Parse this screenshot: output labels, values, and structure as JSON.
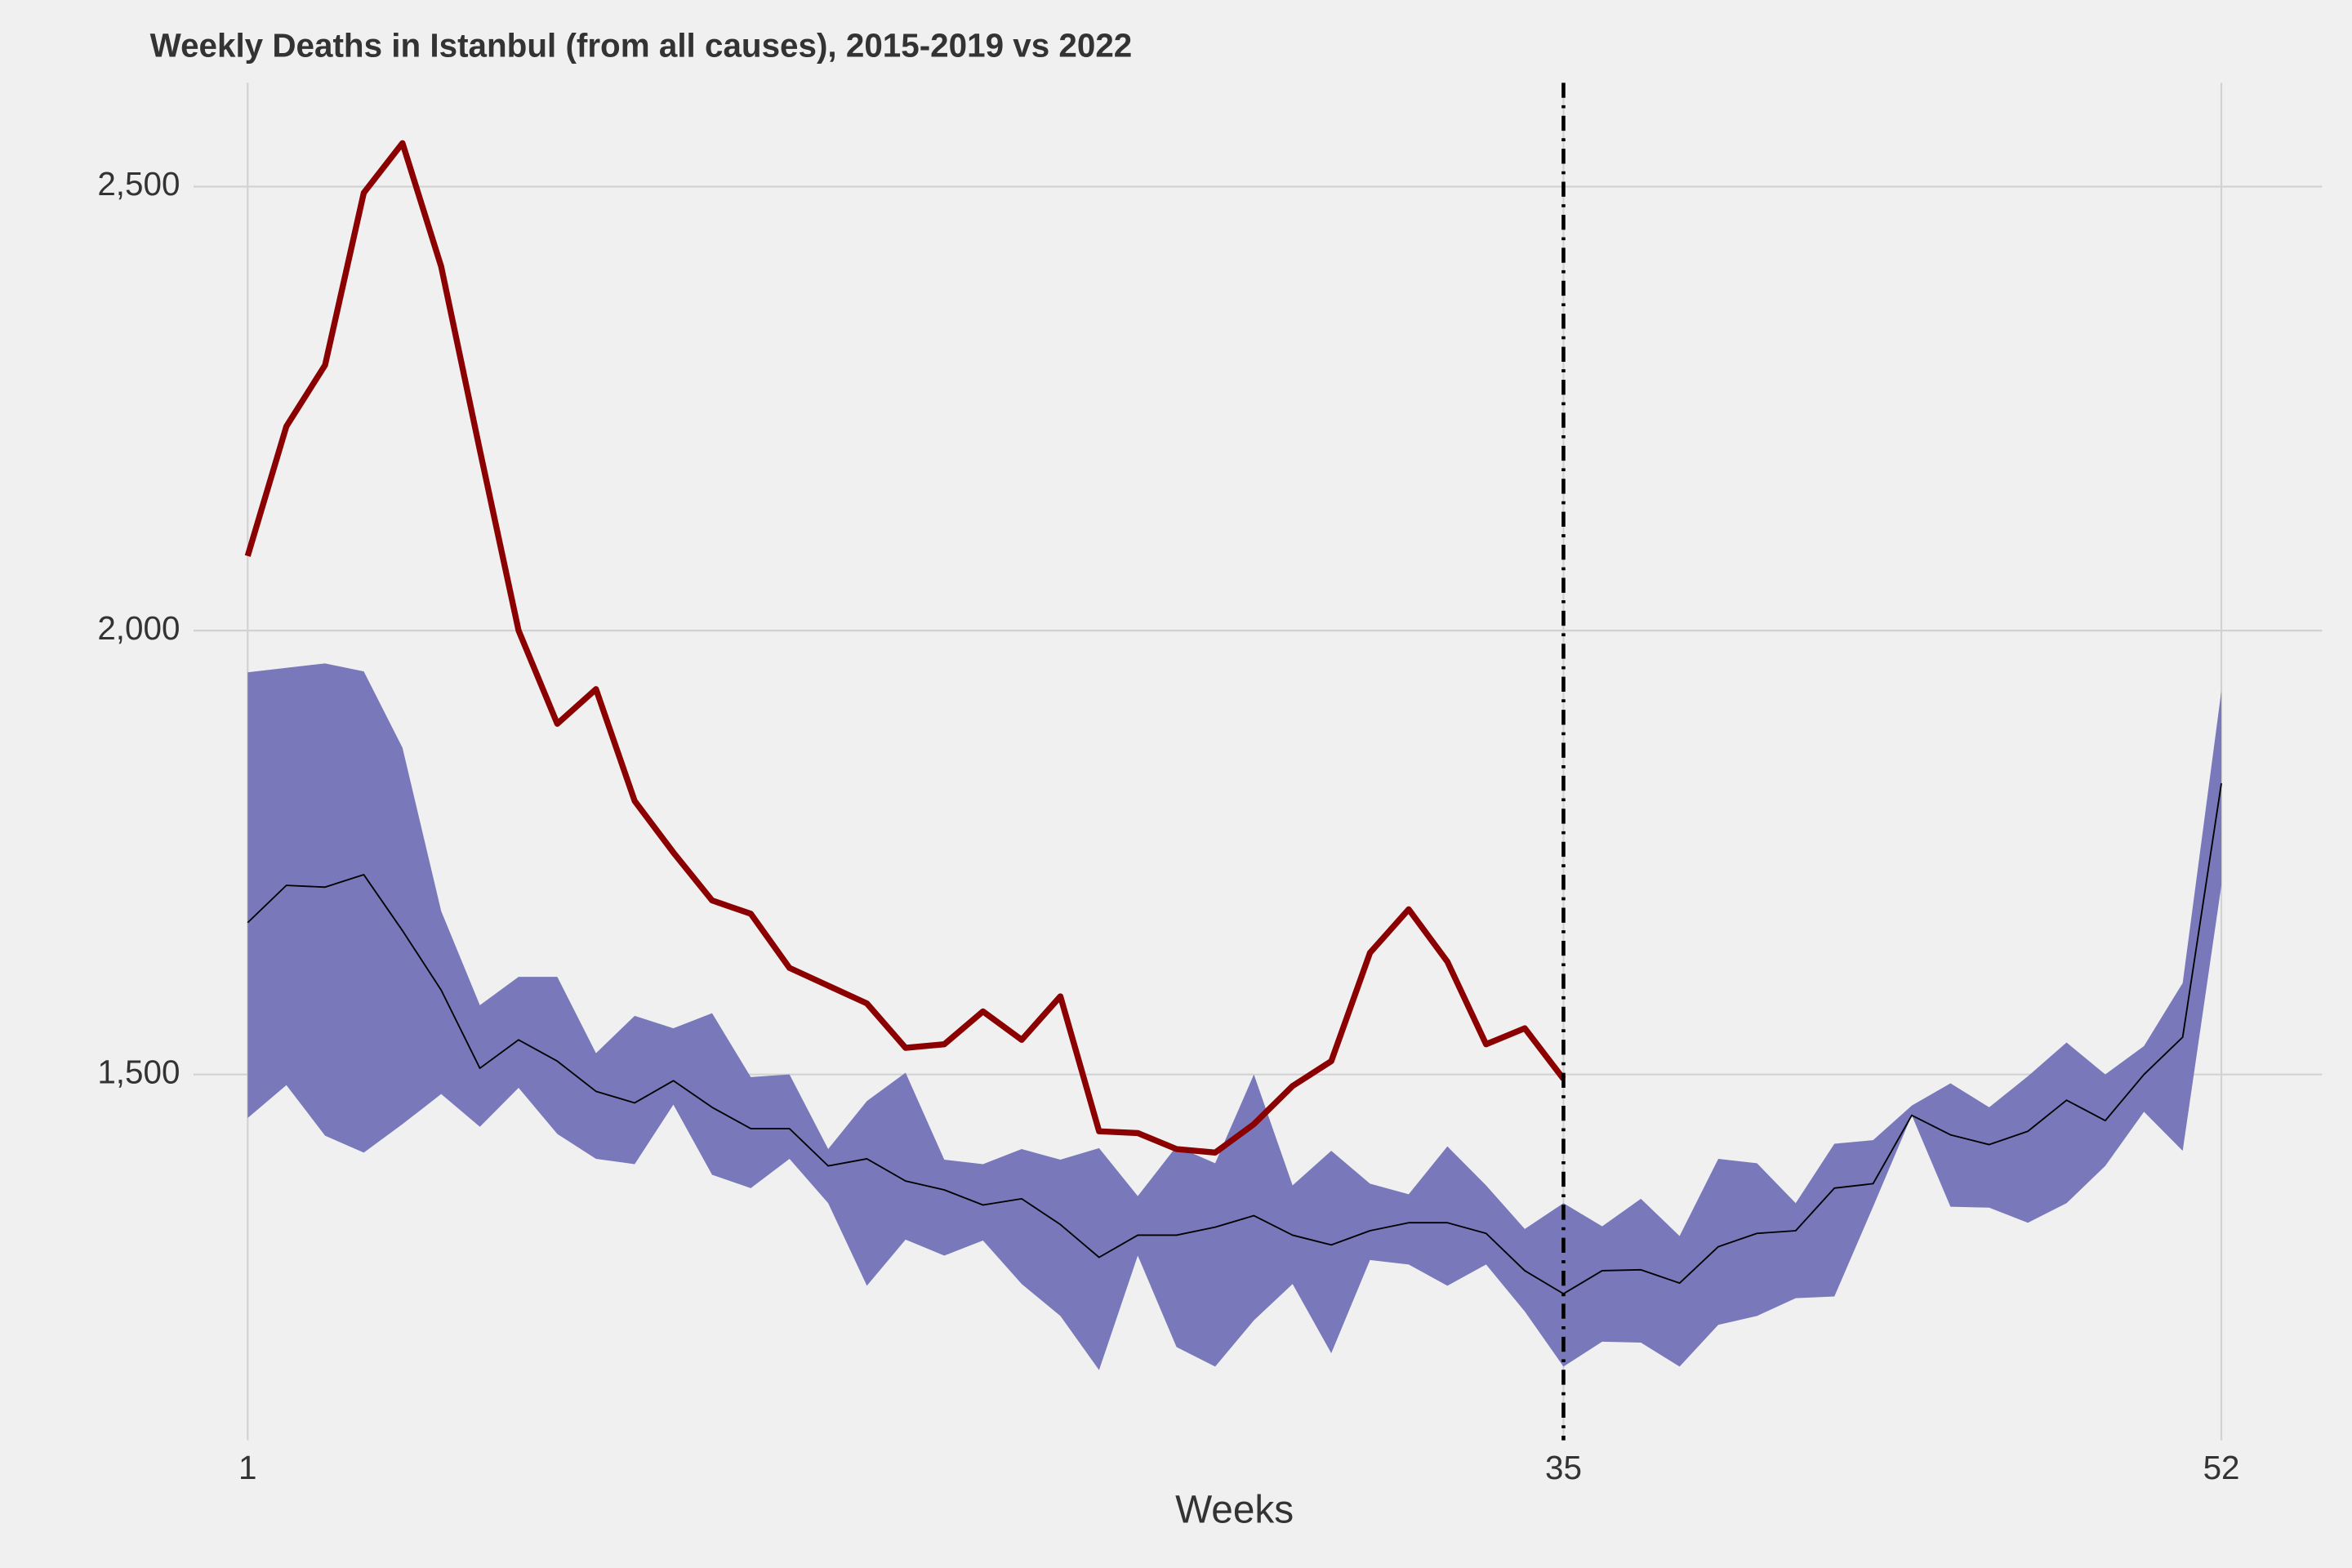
{
  "chart_data": {
    "type": "line",
    "title": "Weekly Deaths in Istanbul (from all causes), 2015-2019 vs 2022",
    "x_label": "Weeks",
    "x": [
      1,
      2,
      3,
      4,
      5,
      6,
      7,
      8,
      9,
      10,
      11,
      12,
      13,
      14,
      15,
      16,
      17,
      18,
      19,
      20,
      21,
      22,
      23,
      24,
      25,
      26,
      27,
      28,
      29,
      30,
      31,
      32,
      33,
      34,
      35,
      36,
      37,
      38,
      39,
      40,
      41,
      42,
      43,
      44,
      45,
      46,
      47,
      48,
      49,
      50,
      51,
      52
    ],
    "xlim": [
      -0.4,
      54.6
    ],
    "xticks": [
      1,
      35,
      52
    ],
    "ylim": [
      1088,
      2617
    ],
    "yticks": [
      {
        "value": 1500,
        "label": "1,500"
      },
      {
        "value": 2000,
        "label": "2,000"
      },
      {
        "value": 2500,
        "label": "2,500"
      }
    ],
    "grid": true,
    "band": {
      "color": "#7878bb",
      "upper": [
        1953,
        1958,
        1963,
        1954,
        1868,
        1684,
        1578,
        1610,
        1610,
        1524,
        1566,
        1552,
        1569,
        1497,
        1500,
        1416,
        1470,
        1502,
        1404,
        1399,
        1416,
        1404,
        1417,
        1363,
        1419,
        1400,
        1500,
        1375,
        1414,
        1377,
        1365,
        1419,
        1375,
        1326,
        1355,
        1329,
        1360,
        1318,
        1405,
        1400,
        1355,
        1422,
        1426,
        1465,
        1490,
        1463,
        1498,
        1536,
        1500,
        1532,
        1603,
        1932
      ],
      "lower": [
        1451,
        1488,
        1431,
        1412,
        1444,
        1478,
        1441,
        1485,
        1433,
        1405,
        1399,
        1466,
        1387,
        1372,
        1405,
        1355,
        1262,
        1314,
        1296,
        1313,
        1264,
        1228,
        1167,
        1296,
        1193,
        1171,
        1223,
        1264,
        1186,
        1291,
        1286,
        1262,
        1286,
        1233,
        1171,
        1199,
        1198,
        1171,
        1218,
        1228,
        1248,
        1250,
        1351,
        1454,
        1351,
        1350,
        1333,
        1355,
        1397,
        1458,
        1414,
        1713
      ]
    },
    "series": [
      {
        "color": "#000000",
        "width": 1,
        "values": [
          1671,
          1713,
          1711,
          1725,
          1662,
          1595,
          1507,
          1539,
          1515,
          1481,
          1468,
          1493,
          1463,
          1439,
          1439,
          1397,
          1405,
          1380,
          1370,
          1353,
          1360,
          1331,
          1294,
          1319,
          1319,
          1328,
          1341,
          1319,
          1308,
          1324,
          1333,
          1333,
          1321,
          1279,
          1253,
          1279,
          1280,
          1265,
          1306,
          1321,
          1324,
          1372,
          1377,
          1454,
          1432,
          1421,
          1436,
          1471,
          1448,
          1500,
          1542,
          1828
        ]
      },
      {
        "color": "#8b0000",
        "width": 4,
        "values": [
          2084,
          2230,
          2299,
          2493,
          2549,
          2410,
          2203,
          2000,
          1895,
          1934,
          1808,
          1750,
          1696,
          1681,
          1620,
          1600,
          1580,
          1530,
          1534,
          1571,
          1539,
          1588,
          1436,
          1434,
          1416,
          1412,
          1444,
          1487,
          1515,
          1637,
          1686,
          1627,
          1534,
          1552,
          1495,
          null,
          null,
          null,
          null,
          null,
          null,
          null,
          null,
          null,
          null,
          null,
          null,
          null,
          null,
          null,
          null,
          null
        ]
      }
    ],
    "vline": {
      "x": 35,
      "color": "#000000",
      "style": "dashdot"
    }
  }
}
